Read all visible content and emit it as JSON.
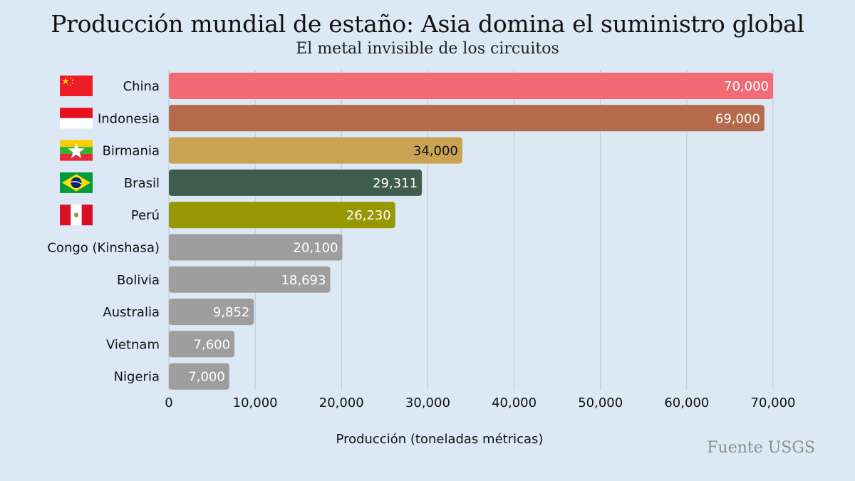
{
  "title": "Producción mundial de estaño: Asia domina el suministro global",
  "subtitle": "El metal invisible de los circuitos",
  "source": "Fuente USGS",
  "chart_data": {
    "type": "bar",
    "orientation": "horizontal",
    "title": "Producción mundial de estaño: Asia domina el suministro global",
    "subtitle": "El metal invisible de los circuitos",
    "xlabel": "Producción (toneladas métricas)",
    "ylabel": "",
    "xlim": [
      0,
      70000
    ],
    "xticks": [
      0,
      10000,
      20000,
      30000,
      40000,
      50000,
      60000,
      70000
    ],
    "xtick_labels": [
      "0",
      "10,000",
      "20,000",
      "30,000",
      "40,000",
      "50,000",
      "60,000",
      "70,000"
    ],
    "grid": "vertical",
    "categories": [
      "China",
      "Indonesia",
      "Birmania",
      "Brasil",
      "Perú",
      "Congo (Kinshasa)",
      "Bolivia",
      "Australia",
      "Vietnam",
      "Nigeria"
    ],
    "values": [
      70000,
      69000,
      34000,
      29311,
      26230,
      20100,
      18693,
      9852,
      7600,
      7000
    ],
    "value_labels": [
      "70,000",
      "69,000",
      "34,000",
      "29,311",
      "26,230",
      "20,100",
      "18,693",
      "9,852",
      "7,600",
      "7,000"
    ],
    "colors": [
      "#f26b74",
      "#b56b4b",
      "#c9a352",
      "#3f5c4d",
      "#979704",
      "#9e9e9e",
      "#9e9e9e",
      "#9e9e9e",
      "#9e9e9e",
      "#9e9e9e"
    ],
    "label_colors": [
      "#ffffff",
      "#ffffff",
      "#111111",
      "#ffffff",
      "#ffffff",
      "#ffffff",
      "#ffffff",
      "#ffffff",
      "#ffffff",
      "#ffffff"
    ],
    "flags": [
      "china-flag",
      "indonesia-flag",
      "myanmar-flag",
      "brazil-flag",
      "peru-flag",
      null,
      null,
      null,
      null,
      null
    ]
  }
}
